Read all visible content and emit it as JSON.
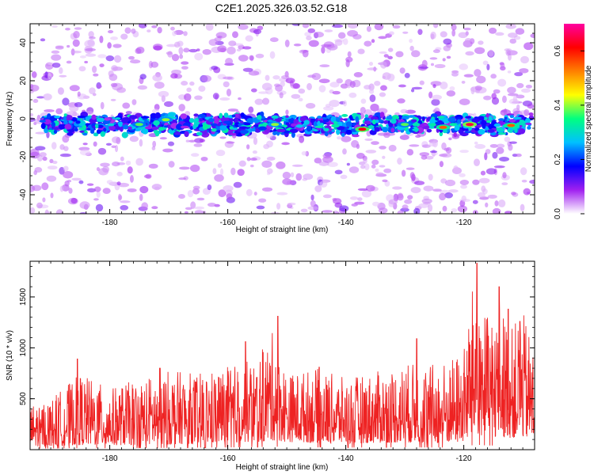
{
  "figure": {
    "title": "C2E1.2025.326.03.52.G18"
  },
  "chart_data": [
    {
      "type": "heatmap",
      "name": "spectrogram",
      "xlabel": "Height of straight line (km)",
      "ylabel": "Frequency (Hz)",
      "xlim": [
        -193.5,
        -108
      ],
      "ylim": [
        -50,
        50
      ],
      "xticks": [
        -180,
        -160,
        -140,
        -120
      ],
      "yticks": [
        -40,
        -20,
        0,
        20,
        40
      ],
      "colorbar": {
        "label": "Normalized spectral amplitude",
        "range": [
          0.0,
          0.7
        ],
        "ticks": [
          0.0,
          0.2,
          0.4,
          0.6
        ],
        "colors": [
          "#ffffff",
          "#a020f0",
          "#0000ff",
          "#00c0ff",
          "#00ff80",
          "#ffff00",
          "#ff8000",
          "#ff0000",
          "#ff00a0"
        ]
      },
      "signal_band": {
        "center_hz": -3,
        "halfwidth_hz": 5,
        "typical_amplitude": 0.25,
        "peaks": [
          {
            "x": -137.2,
            "y": -5.5,
            "amp": 0.62
          },
          {
            "x": -119.0,
            "y": -3.0,
            "amp": 0.65
          },
          {
            "x": -123.5,
            "y": -4.5,
            "amp": 0.55
          },
          {
            "x": -112.0,
            "y": -3.5,
            "amp": 0.55
          },
          {
            "x": -170.5,
            "y": -0.5,
            "amp": 0.4
          },
          {
            "x": -175.0,
            "y": -3.0,
            "amp": 0.38
          },
          {
            "x": -152.0,
            "y": -3.0,
            "amp": 0.4
          },
          {
            "x": -130.0,
            "y": -3.0,
            "amp": 0.38
          }
        ]
      }
    },
    {
      "type": "line",
      "name": "snr",
      "xlabel": "Height of straight line (km)",
      "ylabel": "SNR (10 * v/v)",
      "xlim": [
        -193.5,
        -108
      ],
      "ylim": [
        0,
        1850
      ],
      "xticks": [
        -180,
        -160,
        -140,
        -120
      ],
      "yticks": [
        500,
        1000,
        1500
      ],
      "series": [
        {
          "name": "SNR",
          "color": "#ee2222",
          "envelope_x": [
            -193.5,
            -190,
            -185,
            -180,
            -175,
            -170,
            -165,
            -160,
            -155,
            -152,
            -150,
            -145,
            -140,
            -135,
            -130,
            -125,
            -122,
            -120,
            -118,
            -116,
            -114,
            -112,
            -110,
            -108
          ],
          "envelope_y": [
            450,
            500,
            750,
            600,
            700,
            780,
            750,
            820,
            900,
            1200,
            750,
            800,
            700,
            760,
            850,
            850,
            900,
            1000,
            1800,
            1300,
            1450,
            1200,
            1350,
            1000
          ],
          "floor_y": [
            100,
            120,
            150,
            140,
            160,
            170,
            200,
            220,
            250,
            300,
            250,
            230,
            200,
            220,
            230,
            210,
            220,
            250,
            500,
            400,
            420,
            380,
            400,
            300
          ],
          "peaks": [
            {
              "x": -185.5,
              "y": 890
            },
            {
              "x": -171.5,
              "y": 800
            },
            {
              "x": -157.0,
              "y": 1060
            },
            {
              "x": -151.5,
              "y": 1310
            },
            {
              "x": -144.5,
              "y": 810
            },
            {
              "x": -128.0,
              "y": 1090
            },
            {
              "x": -117.8,
              "y": 1830
            },
            {
              "x": -114.0,
              "y": 1600
            },
            {
              "x": -112.5,
              "y": 1380
            },
            {
              "x": -110.5,
              "y": 1260
            }
          ]
        }
      ]
    }
  ]
}
